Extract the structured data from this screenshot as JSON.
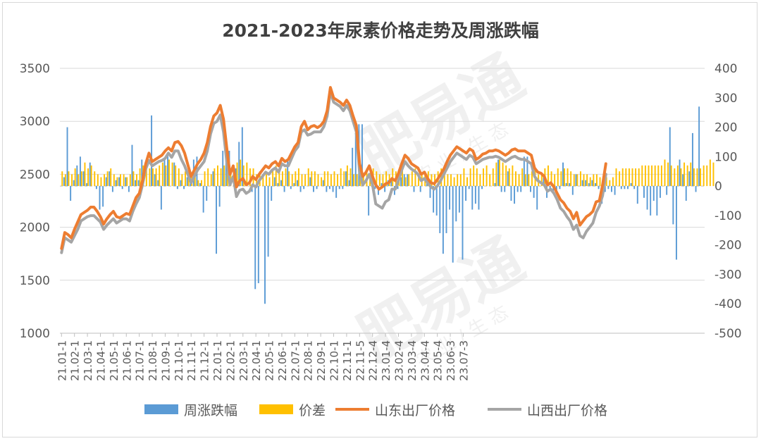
{
  "chart_data": {
    "type": "bar",
    "title": "2021-2023年尿素价格走势及周涨跌幅",
    "y_left": {
      "min": 1000,
      "max": 3500,
      "step": 500,
      "ticks": [
        "1000",
        "1500",
        "2000",
        "2500",
        "3000",
        "3500"
      ]
    },
    "y_right": {
      "min": -500,
      "max": 400,
      "step": 100,
      "ticks": [
        "-500",
        "-400",
        "-300",
        "-200",
        "-100",
        "0",
        "100",
        "200",
        "300",
        "400"
      ]
    },
    "x_labels": [
      "21.01-1",
      "21.02-1",
      "21.03-1",
      "21.04-1",
      "21.05-1",
      "21.06-1",
      "21.07-1",
      "21.08-1",
      "21.09-1",
      "21.10-1",
      "21.11-1",
      "21.12-1",
      "22.01-1",
      "22.02-1",
      "22.03-1",
      "22.04-1",
      "22.05-1",
      "22.06-1",
      "22.07-1",
      "22.08-1",
      "22.09-1",
      "22.10-1",
      "22.11-1",
      "22.11-5",
      "22.12-4",
      "23.01-4",
      "23.02-4",
      "23.03-4",
      "23.04-4",
      "23.05-4",
      "23.06-3",
      "23.07-3"
    ],
    "weeks_per_label": 4,
    "grid": "horizontal",
    "legend_position": "bottom",
    "colors": {
      "weekly": "#5b9bd5",
      "spread": "#ffc000",
      "shandong": "#ed7d31",
      "shanxi": "#a5a5a5"
    },
    "series": [
      {
        "name": "周涨跌幅",
        "type": "bar",
        "axis": "right",
        "values": [
          0,
          30,
          200,
          -50,
          20,
          70,
          100,
          50,
          10,
          80,
          0,
          -10,
          -80,
          -70,
          30,
          50,
          -20,
          20,
          30,
          -10,
          30,
          -20,
          140,
          20,
          20,
          90,
          0,
          0,
          240,
          40,
          20,
          -80,
          90,
          110,
          0,
          80,
          -10,
          20,
          -10,
          30,
          50,
          90,
          100,
          10,
          -90,
          -50,
          0,
          50,
          -230,
          -70,
          120,
          90,
          120,
          0,
          60,
          150,
          200,
          0,
          0,
          -20,
          -350,
          -330,
          0,
          -400,
          -240,
          -50,
          30,
          10,
          20,
          -20,
          90,
          -10,
          10,
          20,
          -20,
          -10,
          0,
          30,
          -20,
          -10,
          0,
          20,
          -20,
          -10,
          -20,
          -40,
          -10,
          -10,
          50,
          20,
          130,
          180,
          210,
          210,
          0,
          -100,
          20,
          -10,
          -30,
          10,
          -20,
          20,
          20,
          -30,
          -10,
          30,
          40,
          40,
          0,
          -20,
          0,
          -20,
          0,
          30,
          -40,
          -90,
          -100,
          -160,
          -230,
          -160,
          -80,
          -260,
          -120,
          -90,
          -250,
          -50,
          -10,
          -80,
          -60,
          -80,
          -10,
          0,
          0,
          0,
          10,
          90,
          -20,
          -20,
          50,
          -50,
          -60,
          -20,
          -20,
          100,
          100,
          -20,
          -40,
          -80,
          0,
          40,
          -40,
          -10,
          -20,
          -20,
          -10,
          80,
          10,
          10,
          -30,
          40,
          0,
          20,
          20,
          10,
          20,
          10,
          -10,
          -60,
          -20,
          -10,
          -20,
          -30,
          0,
          -10,
          -10,
          -10,
          10,
          -10,
          -60,
          0,
          -40,
          -80,
          -100,
          -50,
          -100,
          -40,
          0,
          -30,
          200,
          -130,
          -250,
          90,
          40,
          -50,
          50,
          180,
          -20,
          270,
          0
        ]
      },
      {
        "name": "价差",
        "type": "bar",
        "axis": "right",
        "values": [
          50,
          40,
          50,
          40,
          60,
          40,
          50,
          80,
          60,
          70,
          50,
          40,
          30,
          40,
          50,
          60,
          40,
          30,
          40,
          40,
          30,
          40,
          50,
          40,
          60,
          70,
          80,
          60,
          60,
          60,
          70,
          80,
          70,
          90,
          80,
          70,
          60,
          40,
          50,
          40,
          30,
          40,
          20,
          20,
          50,
          60,
          40,
          60,
          70,
          60,
          70,
          60,
          60,
          70,
          80,
          90,
          70,
          80,
          60,
          60,
          40,
          50,
          40,
          40,
          30,
          60,
          70,
          60,
          50,
          60,
          50,
          40,
          50,
          60,
          40,
          40,
          60,
          50,
          50,
          40,
          30,
          50,
          50,
          40,
          50,
          40,
          60,
          50,
          70,
          60,
          40,
          40,
          60,
          40,
          60,
          40,
          60,
          50,
          40,
          40,
          50,
          40,
          60,
          50,
          50,
          60,
          30,
          40,
          50,
          60,
          40,
          40,
          50,
          50,
          40,
          40,
          50,
          60,
          40,
          40,
          40,
          30,
          40,
          40,
          60,
          30,
          60,
          70,
          60,
          40,
          60,
          70,
          40,
          60,
          80,
          90,
          80,
          70,
          60,
          70,
          50,
          40,
          60,
          40,
          40,
          50,
          60,
          40,
          40,
          60,
          70,
          50,
          40,
          60,
          50,
          60,
          60,
          50,
          40,
          40,
          50,
          40,
          40,
          30,
          40,
          40,
          30,
          30,
          30,
          20,
          30,
          60,
          50,
          60,
          60,
          60,
          60,
          60,
          60,
          70,
          70,
          70,
          70,
          70,
          70,
          70,
          90,
          80,
          70,
          60,
          70,
          60,
          80,
          70,
          80,
          60,
          60,
          60,
          70,
          70,
          90,
          80
        ]
      },
      {
        "name": "山东出厂价格",
        "type": "line",
        "axis": "left",
        "values": [
          1800,
          1950,
          1930,
          1900,
          1980,
          2050,
          2120,
          2140,
          2160,
          2190,
          2190,
          2150,
          2100,
          2030,
          2080,
          2120,
          2150,
          2100,
          2090,
          2110,
          2130,
          2120,
          2200,
          2280,
          2320,
          2440,
          2600,
          2700,
          2620,
          2640,
          2660,
          2680,
          2720,
          2750,
          2720,
          2800,
          2810,
          2770,
          2700,
          2590,
          2480,
          2540,
          2600,
          2640,
          2700,
          2800,
          2950,
          3050,
          3080,
          3150,
          3020,
          2750,
          2500,
          2580,
          2380,
          2440,
          2460,
          2400,
          2420,
          2480,
          2450,
          2500,
          2540,
          2580,
          2560,
          2600,
          2620,
          2580,
          2650,
          2620,
          2640,
          2700,
          2760,
          2800,
          2950,
          3000,
          2920,
          2950,
          2960,
          2940,
          2960,
          3000,
          3100,
          3320,
          3220,
          3200,
          3180,
          3150,
          3200,
          3150,
          3050,
          2960,
          2600,
          2480,
          2520,
          2580,
          2480,
          2400,
          2360,
          2380,
          2410,
          2420,
          2460,
          2440,
          2510,
          2600,
          2680,
          2650,
          2600,
          2580,
          2560,
          2500,
          2520,
          2460,
          2420,
          2410,
          2450,
          2500,
          2550,
          2620,
          2680,
          2720,
          2760,
          2740,
          2720,
          2700,
          2740,
          2720,
          2640,
          2660,
          2690,
          2700,
          2720,
          2720,
          2730,
          2720,
          2700,
          2680,
          2700,
          2730,
          2740,
          2720,
          2720,
          2720,
          2700,
          2680,
          2560,
          2520,
          2510,
          2480,
          2400,
          2420,
          2380,
          2320,
          2260,
          2230,
          2180,
          2150,
          2080,
          2140,
          2020,
          2060,
          2100,
          2120,
          2150,
          2240,
          2250,
          2400,
          2600
        ]
      },
      {
        "name": "山西出厂价格",
        "type": "line",
        "axis": "left",
        "values": [
          1760,
          1900,
          1880,
          1860,
          1920,
          1980,
          2060,
          2080,
          2100,
          2110,
          2110,
          2080,
          2050,
          1980,
          2020,
          2050,
          2080,
          2040,
          2060,
          2080,
          2080,
          2060,
          2150,
          2220,
          2280,
          2400,
          2550,
          2630,
          2580,
          2600,
          2620,
          2630,
          2650,
          2700,
          2660,
          2720,
          2720,
          2640,
          2580,
          2500,
          2420,
          2480,
          2540,
          2580,
          2620,
          2720,
          2880,
          2980,
          3000,
          3060,
          2900,
          2620,
          2400,
          2480,
          2290,
          2350,
          2360,
          2320,
          2340,
          2400,
          2380,
          2440,
          2480,
          2520,
          2500,
          2540,
          2560,
          2520,
          2600,
          2580,
          2580,
          2650,
          2720,
          2760,
          2900,
          2920,
          2870,
          2880,
          2900,
          2900,
          2900,
          2950,
          3050,
          3280,
          3180,
          3160,
          3140,
          3100,
          3150,
          3100,
          3000,
          2900,
          2520,
          2400,
          2440,
          2500,
          2400,
          2220,
          2200,
          2180,
          2240,
          2260,
          2360,
          2360,
          2440,
          2540,
          2620,
          2580,
          2550,
          2530,
          2500,
          2440,
          2460,
          2420,
          2380,
          2360,
          2390,
          2440,
          2500,
          2560,
          2620,
          2660,
          2700,
          2680,
          2660,
          2640,
          2680,
          2660,
          2600,
          2620,
          2640,
          2650,
          2660,
          2660,
          2670,
          2660,
          2640,
          2620,
          2640,
          2660,
          2670,
          2650,
          2640,
          2640,
          2620,
          2600,
          2480,
          2440,
          2420,
          2400,
          2340,
          2360,
          2320,
          2260,
          2180,
          2150,
          2100,
          2060,
          1980,
          2020,
          1920,
          1900,
          1960,
          2000,
          2040,
          2140,
          2200,
          2300,
          2500
        ]
      }
    ]
  },
  "legend": [
    {
      "label": "周涨跌幅",
      "kind": "bar",
      "color": "#5b9bd5"
    },
    {
      "label": "价差",
      "kind": "bar",
      "color": "#ffc000"
    },
    {
      "label": "山东出厂价格",
      "kind": "line",
      "color": "#ed7d31"
    },
    {
      "label": "山西出厂价格",
      "kind": "line",
      "color": "#a5a5a5"
    }
  ],
  "watermark": {
    "brand": "肥易通",
    "tagline": "农 业 / 生 态"
  }
}
